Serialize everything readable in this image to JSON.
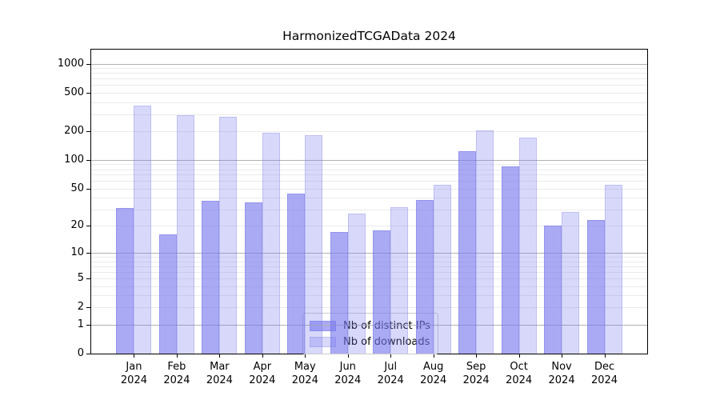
{
  "page": {
    "background": "#ffffff"
  },
  "chart_data": {
    "type": "bar",
    "title": "HarmonizedTCGAData 2024",
    "categories": [
      "Jan",
      "Feb",
      "Mar",
      "Apr",
      "May",
      "Jun",
      "Jul",
      "Aug",
      "Sep",
      "Oct",
      "Nov",
      "Dec"
    ],
    "category_year": "2024",
    "series": [
      {
        "name": "Nb of distinct IPs",
        "values": [
          31,
          16,
          37,
          36,
          44,
          17,
          18,
          38,
          124,
          85,
          20,
          23
        ],
        "fill": "rgba(120,120,238,0.63)",
        "edge": "rgba(110,110,225,0.35)"
      },
      {
        "name": "Nb of downloads",
        "values": [
          365,
          292,
          283,
          192,
          180,
          27,
          32,
          55,
          204,
          172,
          28,
          55
        ],
        "fill": "rgba(120,120,238,0.29)",
        "edge": "rgba(110,110,225,0.25)"
      }
    ],
    "y_scale": "log1p",
    "ylim": [
      0,
      1400
    ],
    "y_ticks": [
      0,
      1,
      2,
      5,
      10,
      20,
      50,
      100,
      200,
      500,
      1000
    ],
    "grid": {
      "major_values": [
        1,
        10,
        100,
        1000
      ],
      "minor_values": [
        2,
        3,
        4,
        5,
        6,
        7,
        8,
        9,
        20,
        30,
        40,
        50,
        60,
        70,
        80,
        90,
        200,
        300,
        400,
        500,
        600,
        700,
        800,
        900
      ],
      "major_color": "#b2b2b2",
      "minor_color": "#ebebeb"
    },
    "legend": {
      "position": "lower-center",
      "items": [
        "Nb of distinct IPs",
        "Nb of downloads"
      ]
    },
    "axis_color": "#000000"
  }
}
